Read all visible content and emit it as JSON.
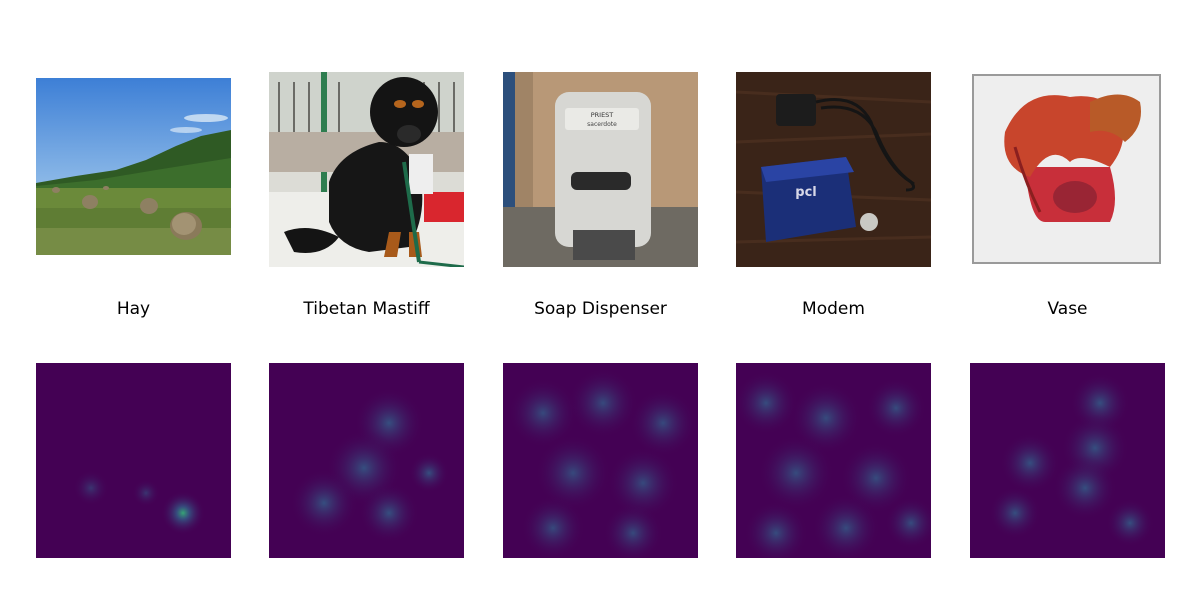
{
  "columns": [
    {
      "label": "Hay",
      "photo": "hay-field-photo",
      "saliency": "hay-saliency-map"
    },
    {
      "label": "Tibetan Mastiff",
      "photo": "tibetan-mastiff-photo",
      "saliency": "tibetan-mastiff-saliency-map"
    },
    {
      "label": "Soap Dispenser",
      "photo": "soap-dispenser-photo",
      "saliency": "soap-dispenser-saliency-map"
    },
    {
      "label": "Modem",
      "photo": "modem-photo",
      "saliency": "modem-saliency-map"
    },
    {
      "label": "Vase",
      "photo": "vase-photo",
      "saliency": "vase-saliency-map"
    }
  ],
  "photo_texts": {
    "dispenser_brand": "PRIEST",
    "dispenser_sub": "sacerdote",
    "modem_brand": "pcl"
  },
  "colors": {
    "background": "#ffffff",
    "saliency_low": "#440154",
    "saliency_mid": "#31688e",
    "saliency_high": "#35b779"
  }
}
